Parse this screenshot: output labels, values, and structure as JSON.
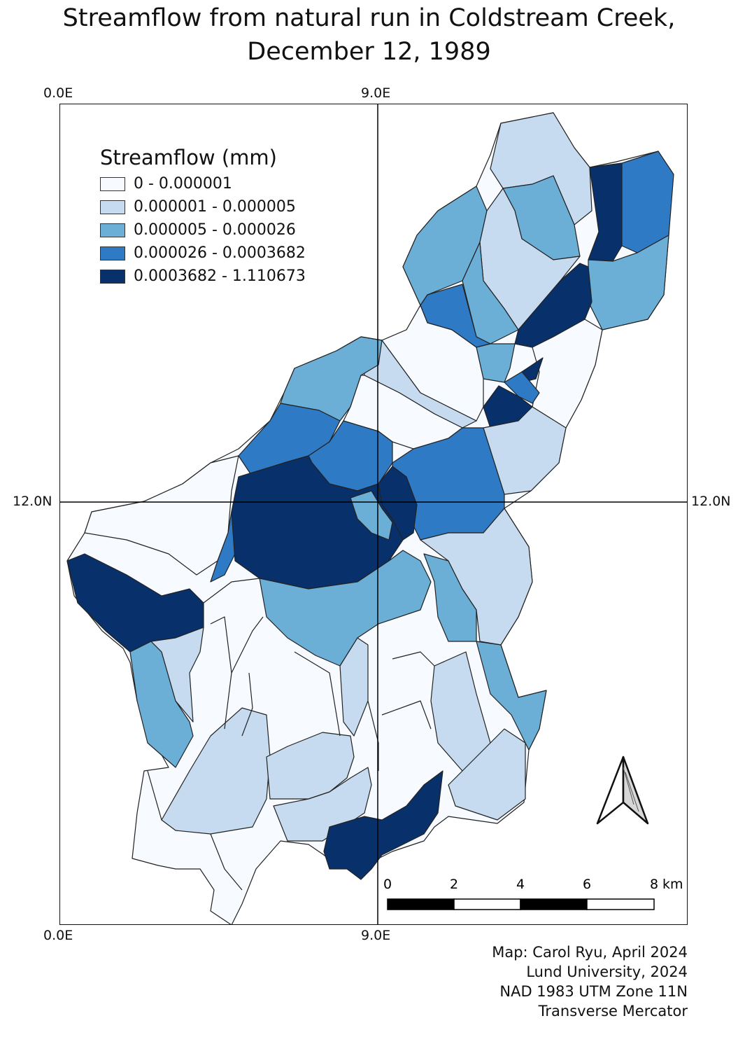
{
  "title": {
    "line1": "Streamflow from natural run in Coldstream Creek,",
    "line2": "December 12, 1989"
  },
  "grid_labels": {
    "top_left": "0.0E",
    "top_mid": "9.0E",
    "bottom_left": "0.0E",
    "bottom_mid": "9.0E",
    "left_mid": "12.0N",
    "right_mid": "12.0N"
  },
  "legend": {
    "title": "Streamflow (mm)",
    "classes": [
      {
        "label": "0 - 0.000001",
        "color": "#f7fbff"
      },
      {
        "label": "0.000001 -  0.000005",
        "color": "#c6dbef"
      },
      {
        "label": "0.000005 -  0.000026",
        "color": "#6baed6"
      },
      {
        "label": "0.000026 -  0.0003682",
        "color": "#2f7ac4"
      },
      {
        "label": "0.0003682 - 1.110673",
        "color": "#08306b"
      }
    ]
  },
  "scale_bar": {
    "ticks": [
      "0",
      "2",
      "4",
      "6",
      "8"
    ],
    "unit": "km"
  },
  "north_arrow": "north-arrow-icon",
  "credits": {
    "line1": "Map: Carol Ryu,  April 2024",
    "line2": "Lund University,  2024",
    "line3": "NAD 1983 UTM Zone 11N",
    "line4": "Transverse Mercator"
  }
}
